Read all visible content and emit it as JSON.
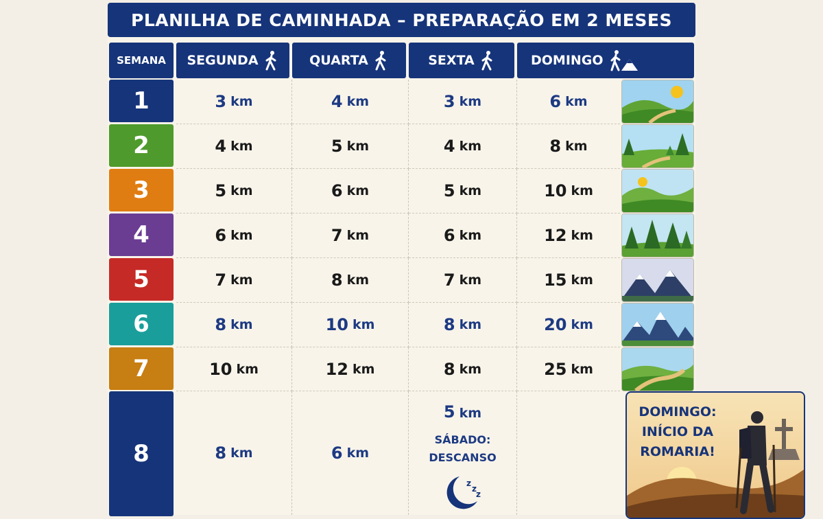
{
  "title": "PLANILHA DE CAMINHADA – PREPARAÇÃO EM 2 MESES",
  "headers": {
    "week": "SEMANA",
    "monday": "SEGUNDA",
    "wednesday": "QUARTA",
    "friday": "SEXTA",
    "sunday": "DOMINGO"
  },
  "unit": "km",
  "rows": [
    {
      "week": "1",
      "color": "#16347a",
      "mon": "3",
      "wed": "4",
      "fri": "3",
      "sun": "6",
      "style": "blue",
      "scene": "sunny-hills-icon"
    },
    {
      "week": "2",
      "color": "#4f9a2c",
      "mon": "4",
      "wed": "5",
      "fri": "4",
      "sun": "8",
      "style": "dark",
      "scene": "forest-path-icon"
    },
    {
      "week": "3",
      "color": "#e07d12",
      "mon": "5",
      "wed": "6",
      "fri": "5",
      "sun": "10",
      "style": "dark",
      "scene": "sunrise-hills-icon"
    },
    {
      "week": "4",
      "color": "#6a3d93",
      "mon": "6",
      "wed": "7",
      "fri": "6",
      "sun": "12",
      "style": "dark",
      "scene": "pine-trees-icon"
    },
    {
      "week": "5",
      "color": "#c62a27",
      "mon": "7",
      "wed": "8",
      "fri": "7",
      "sun": "15",
      "style": "dark",
      "scene": "mountains-icon"
    },
    {
      "week": "6",
      "color": "#1a9e9b",
      "mon": "8",
      "wed": "10",
      "fri": "8",
      "sun": "20",
      "style": "blue",
      "scene": "snowy-mountains-icon"
    },
    {
      "week": "7",
      "color": "#c77e12",
      "mon": "10",
      "wed": "12",
      "fri": "8",
      "sun": "25",
      "style": "dark",
      "scene": "valley-path-icon"
    }
  ],
  "final_week": {
    "week": "8",
    "mon": "8",
    "wed": "6",
    "fri": "5",
    "rest_line1": "SÁBADO:",
    "rest_line2": "DESCANSO",
    "poster_line1": "DOMINGO:",
    "poster_line2": "INÍCIO DA",
    "poster_line3": "ROMARIA!"
  }
}
